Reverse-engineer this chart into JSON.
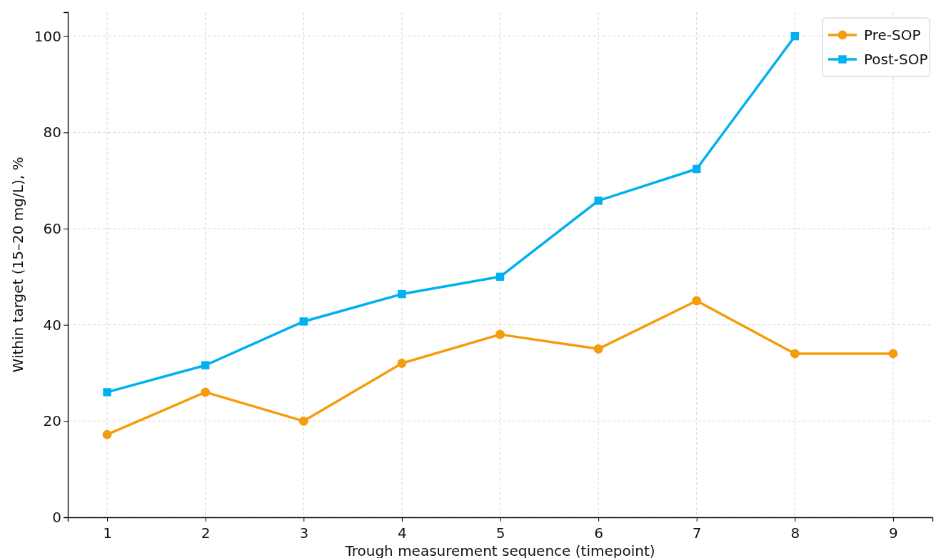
{
  "chart_data": {
    "type": "line",
    "xlabel": "Trough measurement sequence (timepoint)",
    "ylabel": "Within target (15–20 mg/L), %",
    "x": [
      1,
      2,
      3,
      4,
      5,
      6,
      7,
      8,
      9
    ],
    "xlim": [
      0.6,
      9.4
    ],
    "xticks": [
      1,
      2,
      3,
      4,
      5,
      6,
      7,
      8,
      9
    ],
    "ylim": [
      0,
      105
    ],
    "yticks": [
      0,
      20,
      40,
      60,
      80,
      100
    ],
    "grid": true,
    "legend": "top right",
    "line_style": "solid",
    "series": [
      {
        "name": "Pre-SOP",
        "color": "#f59c0c",
        "marker": "circle",
        "values": [
          17.2,
          26,
          20,
          32,
          38,
          35,
          45,
          34,
          34
        ]
      },
      {
        "name": "Post-SOP",
        "color": "#00b0ef",
        "marker": "square",
        "values": [
          26,
          31.6,
          40.7,
          46.4,
          50,
          65.8,
          72.4,
          100,
          null
        ]
      }
    ]
  }
}
